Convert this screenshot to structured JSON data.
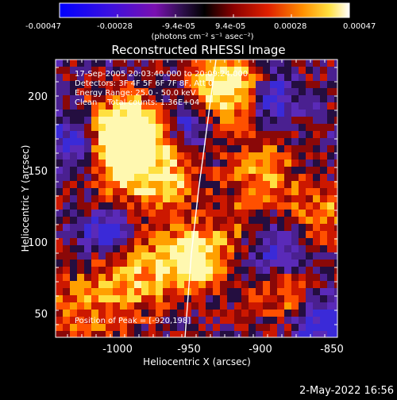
{
  "plot_title": "Reconstructed RHESSI Image",
  "colorbar": {
    "tick_labels": [
      "-0.00047",
      "-0.00028",
      "-9.4e-05",
      "9.4e-05",
      "0.00028",
      "0.00047"
    ],
    "unit_label": "(photons cm⁻² s⁻¹ asec⁻²)",
    "min": -0.00047,
    "max": 0.00047
  },
  "annotations": {
    "time_range": "17-Sep-2005 20:03:40.000 to 20:09:24.000",
    "detectors": "Detectors: 3F 4F 5F 6F 7F 8F, Att 0",
    "energy_range": "Energy Range: 25.0 - 50.0 keV",
    "method_counts": "Clean    Total counts: 1.36E+04",
    "peak_position": "Position of Peak = [-920,198]"
  },
  "axes": {
    "xlabel": "Heliocentric X (arcsec)",
    "ylabel": "Heliocentric Y (arcsec)",
    "x_ticks": [
      "-1000",
      "-950",
      "-900",
      "-850"
    ],
    "y_ticks": [
      "50",
      "100",
      "150",
      "200"
    ],
    "xlim": [
      -1045,
      -848
    ],
    "ylim": [
      38,
      227
    ]
  },
  "footer_timestamp": "2-May-2022 16:56",
  "colors": {
    "background": "#000000",
    "text": "#ffffff"
  }
}
